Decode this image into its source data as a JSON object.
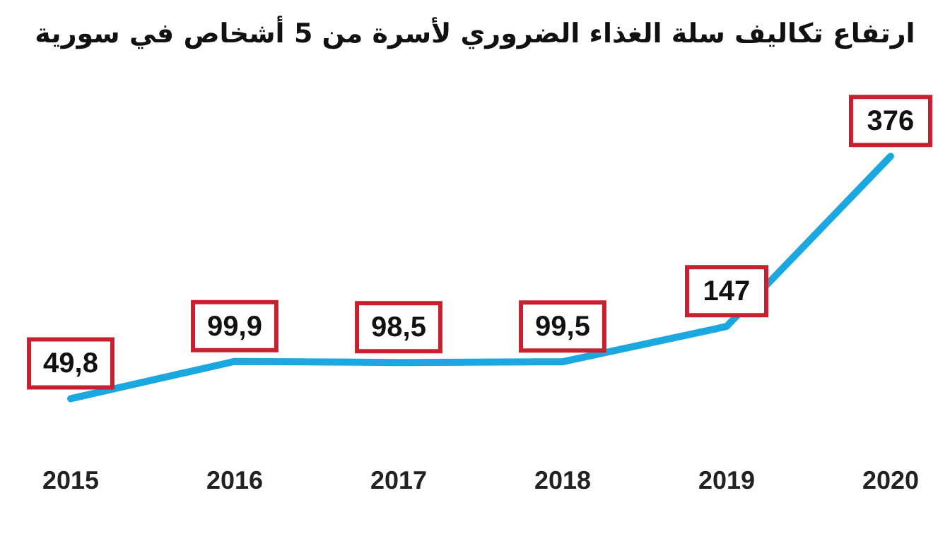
{
  "chart_data": {
    "type": "line",
    "title": "ارتفاع تكاليف سلة الغذاء الضروري لأسرة من 5 أشخاص في سورية",
    "categories": [
      "2015",
      "2016",
      "2017",
      "2018",
      "2019",
      "2020"
    ],
    "series": [
      {
        "color": "#1ba8e0",
        "values": [
          49.8,
          99.9,
          98.5,
          99.5,
          147,
          376
        ],
        "value_labels": [
          "49,8",
          "99,9",
          "98,5",
          "99,5",
          "147",
          "376"
        ]
      }
    ],
    "grid": false,
    "legend": false,
    "marker": "none",
    "line_style": "solid",
    "tick_labels": "x"
  }
}
